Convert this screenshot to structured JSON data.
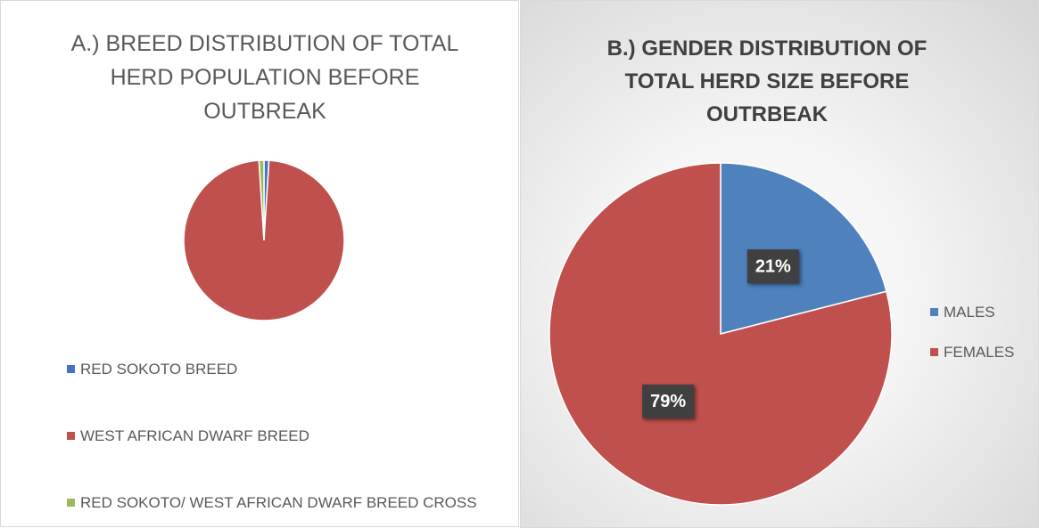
{
  "chart_data": [
    {
      "type": "pie",
      "title": "A.) BREED DISTRIBUTION OF TOTAL HERD POPULATION BEFORE OUTBREAK",
      "categories": [
        "RED SOKOTO BREED",
        "WEST AFRICAN DWARF BREED",
        "RED SOKOTO/ WEST AFRICAN DWARF BREED CROSS"
      ],
      "values": [
        1,
        98,
        1
      ],
      "colors": [
        "#4472c4",
        "#c0504d",
        "#9bbb59"
      ]
    },
    {
      "type": "pie",
      "title": "B.) GENDER DISTRIBUTION OF TOTAL HERD SIZE BEFORE OUTRBEAK",
      "categories": [
        "MALES",
        "FEMALES"
      ],
      "values": [
        21,
        79
      ],
      "value_labels": [
        "21%",
        "79%"
      ],
      "colors": [
        "#4f81bd",
        "#c0504d"
      ]
    }
  ]
}
